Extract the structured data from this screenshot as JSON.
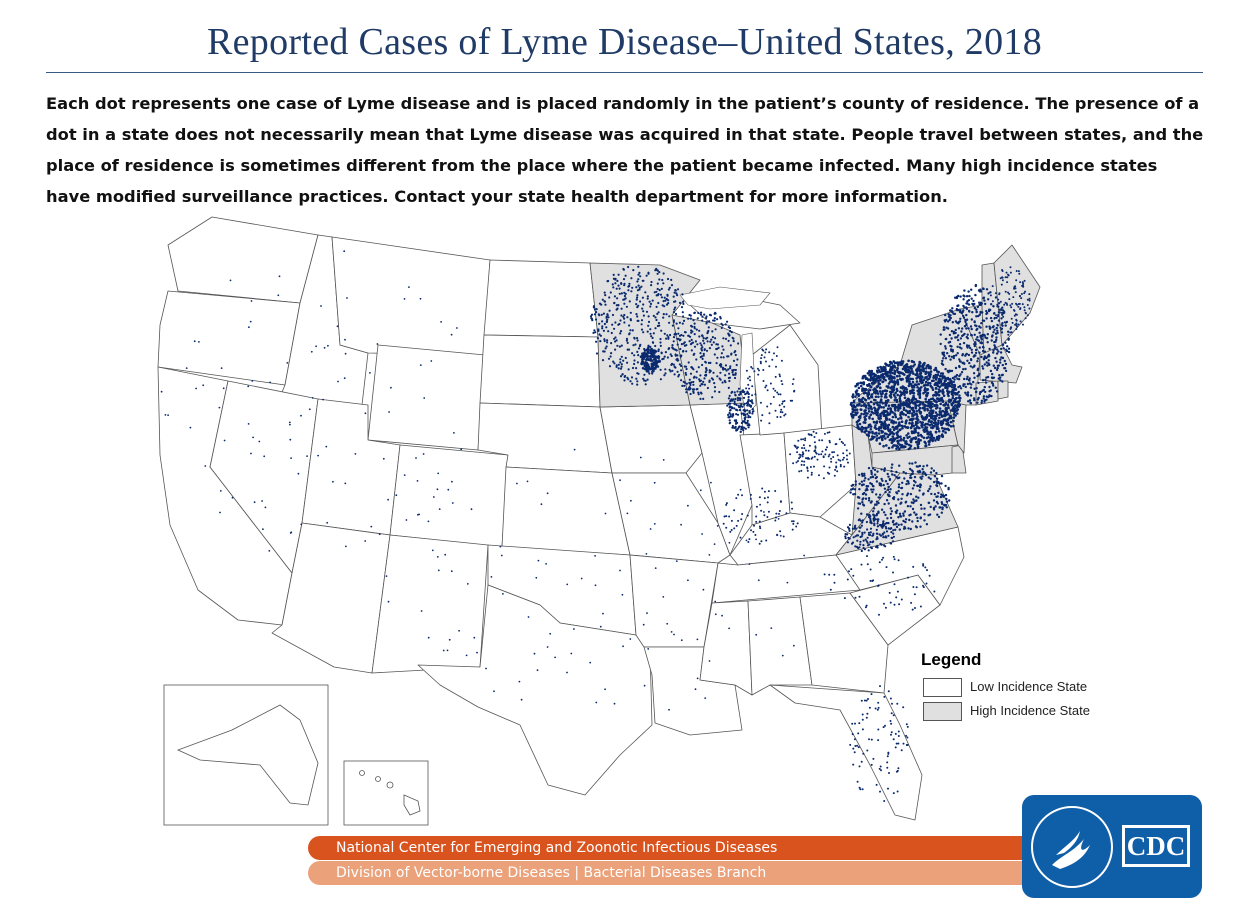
{
  "title": "Reported Cases of Lyme Disease–United States, 2018",
  "description": "Each dot represents one case of Lyme disease and is placed randomly in the patient’s county of residence. The presence of a dot in a state does not necessarily mean that Lyme disease was acquired in that state. People travel between states, and the place of residence is sometimes different from the place where the patient became infected. Many high incidence states have modified surveillance practices. Contact your state health department for more information.",
  "legend": {
    "title": "Legend",
    "items": [
      {
        "label": "Low Incidence State",
        "color": "#ffffff"
      },
      {
        "label": "High Incidence State",
        "color": "#e0e0e0"
      }
    ]
  },
  "colors": {
    "dot": "#0b2a6e",
    "high_incidence_fill": "#e0e0e0",
    "low_incidence_fill": "#ffffff",
    "state_border": "#555555",
    "footer_primary": "#d9531e",
    "footer_secondary": "#eba17a",
    "logo_blue": "#0f5ea8"
  },
  "high_incidence_states": [
    "Minnesota",
    "Wisconsin",
    "Maine",
    "Vermont",
    "New Hampshire",
    "Massachusetts",
    "Connecticut",
    "Rhode Island",
    "New York",
    "New Jersey",
    "Pennsylvania",
    "Delaware",
    "Maryland",
    "Virginia",
    "West Virginia"
  ],
  "footer": {
    "line1": "National Center for Emerging and Zoonotic Infectious Diseases",
    "line2": "Division of Vector-borne Diseases | Bacterial Diseases Branch"
  },
  "logo": {
    "text": "CDC",
    "icon": "hhs-eagle-icon"
  }
}
